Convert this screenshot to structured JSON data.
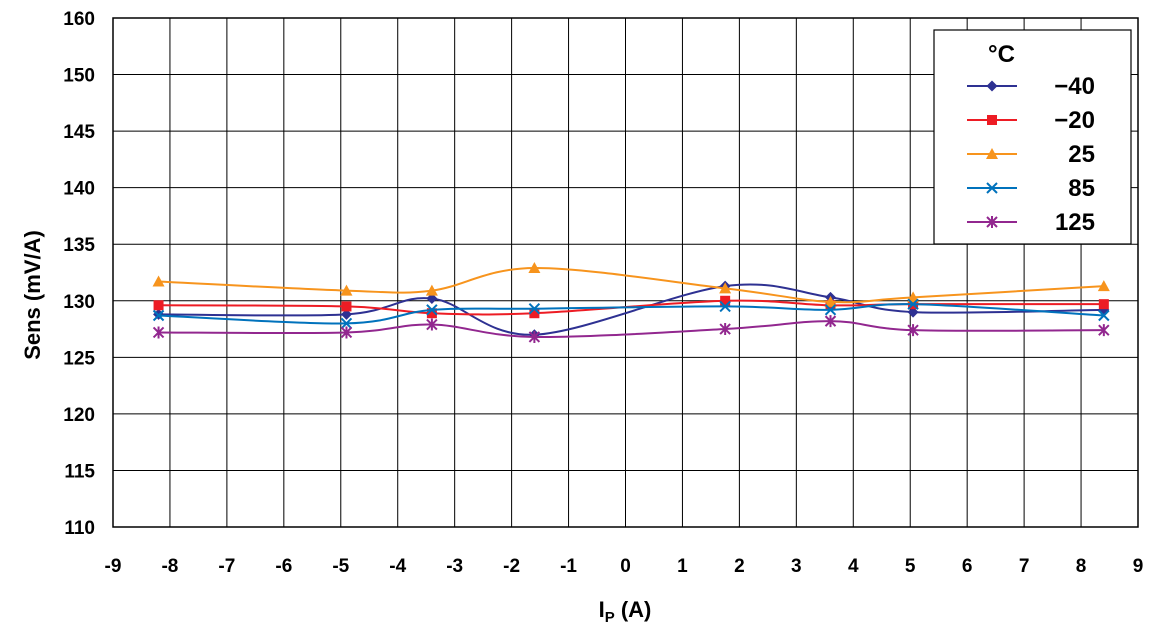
{
  "chart_data": {
    "type": "line",
    "title": "",
    "xlabel": "I",
    "xlabel_sub": "P",
    "xlabel_unit": " (A)",
    "ylabel": "Sens (mV/A)",
    "xlim": [
      -9,
      9
    ],
    "xticks": [
      "-9",
      "-8",
      "-7",
      "-6",
      "-5",
      "-4",
      "-3",
      "-2",
      "-1",
      "0",
      "1",
      "2",
      "3",
      "4",
      "5",
      "6",
      "7",
      "8",
      "9"
    ],
    "yticks": [
      "110",
      "115",
      "120",
      "125",
      "130",
      "135",
      "140",
      "145",
      "150",
      "160"
    ],
    "grid": true,
    "legend_title": "°C",
    "legend_position": "top-right",
    "x": [
      -8.2,
      -4.9,
      -3.4,
      -1.6,
      1.75,
      3.6,
      5.05,
      8.4
    ],
    "series": [
      {
        "name": "−40",
        "color": "#2e3192",
        "marker": "diamond",
        "values": [
          128.8,
          128.8,
          130.2,
          127.0,
          131.3,
          130.3,
          129.0,
          129.2
        ]
      },
      {
        "name": "−20",
        "color": "#ed1c24",
        "marker": "square",
        "values": [
          129.6,
          129.5,
          128.9,
          128.9,
          130.0,
          129.6,
          129.7,
          129.7
        ]
      },
      {
        "name": "25",
        "color": "#f7941d",
        "marker": "triangle",
        "values": [
          131.7,
          130.9,
          130.9,
          132.9,
          131.1,
          129.9,
          130.3,
          131.3
        ]
      },
      {
        "name": "85",
        "color": "#0072bc",
        "marker": "x",
        "values": [
          128.7,
          128.0,
          129.2,
          129.3,
          129.5,
          129.2,
          129.7,
          128.7
        ]
      },
      {
        "name": "125",
        "color": "#92278f",
        "marker": "star",
        "values": [
          127.2,
          127.2,
          127.9,
          126.8,
          127.5,
          128.2,
          127.4,
          127.4
        ]
      }
    ]
  }
}
